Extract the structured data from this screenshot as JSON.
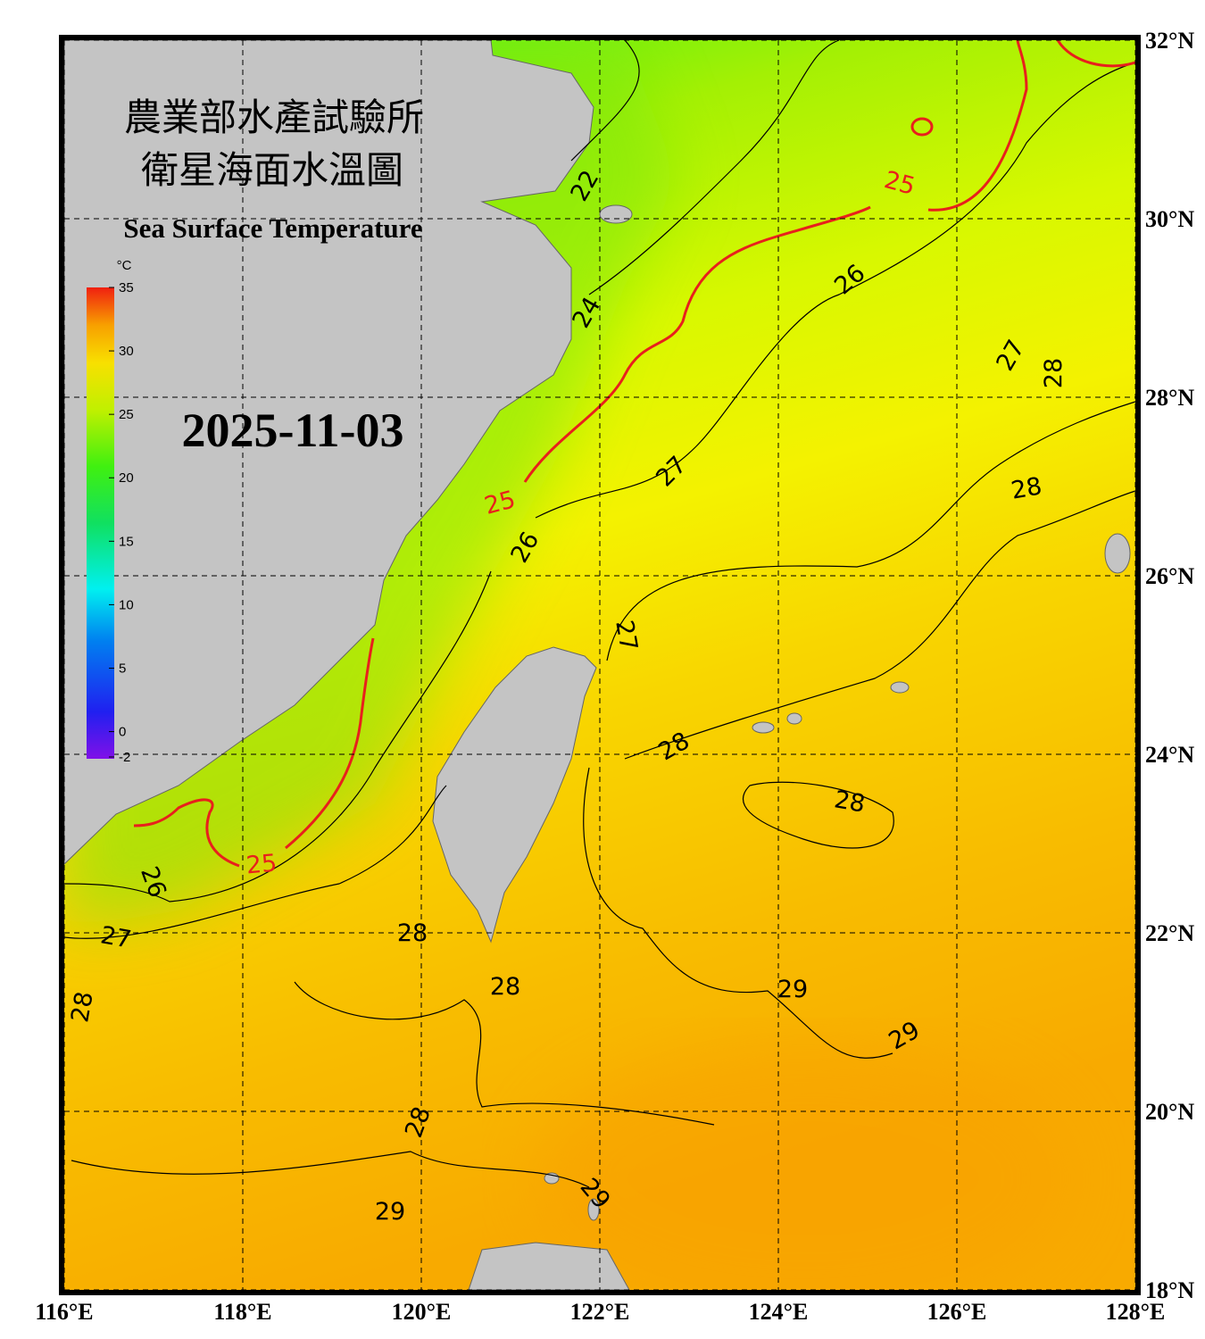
{
  "header": {
    "title_line1": "農業部水產試驗所",
    "title_line2": "衛星海面水溫圖",
    "subtitle": "Sea Surface Temperature",
    "date": "2025-11-03"
  },
  "colorbar": {
    "unit": "°C",
    "range": [
      -2,
      35
    ],
    "ticks": [
      35,
      30,
      25,
      20,
      15,
      10,
      5,
      0,
      -2
    ]
  },
  "map": {
    "lon_range": [
      116,
      128
    ],
    "lat_range": [
      18,
      32
    ],
    "lon_ticks": [
      {
        "value": 116,
        "label": "116°E"
      },
      {
        "value": 118,
        "label": "118°E"
      },
      {
        "value": 120,
        "label": "120°E"
      },
      {
        "value": 122,
        "label": "122°E"
      },
      {
        "value": 124,
        "label": "124°E"
      },
      {
        "value": 126,
        "label": "126°E"
      },
      {
        "value": 128,
        "label": "128°E"
      }
    ],
    "lat_ticks": [
      {
        "value": 18,
        "label": "18°N"
      },
      {
        "value": 20,
        "label": "20°N"
      },
      {
        "value": 22,
        "label": "22°N"
      },
      {
        "value": 24,
        "label": "24°N"
      },
      {
        "value": 26,
        "label": "26°N"
      },
      {
        "value": 28,
        "label": "28°N"
      },
      {
        "value": 30,
        "label": "30°N"
      },
      {
        "value": 32,
        "label": "32°N"
      }
    ],
    "contour_labels": [
      22,
      24,
      25,
      25,
      25,
      26,
      27,
      28,
      27,
      28,
      26,
      27,
      28,
      28,
      26,
      27,
      28,
      28,
      29,
      29,
      28,
      28,
      29,
      29
    ],
    "contour_color": "#000000",
    "highlight": {
      "level": 25,
      "color": "#e8201c"
    }
  }
}
